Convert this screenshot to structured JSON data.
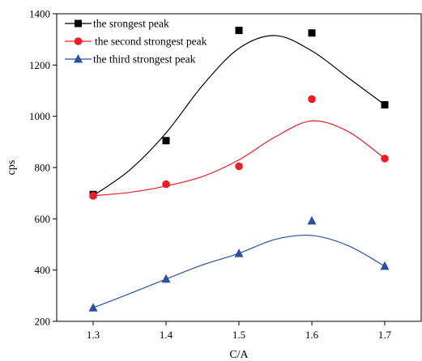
{
  "chart_data": {
    "type": "scatter",
    "title": "",
    "xlabel": "C/A",
    "ylabel": "cps",
    "xlim": [
      1.25,
      1.75
    ],
    "ylim": [
      200,
      1400
    ],
    "xticks": [
      1.3,
      1.4,
      1.5,
      1.6,
      1.7
    ],
    "yticks": [
      200,
      400,
      600,
      800,
      1000,
      1200,
      1400
    ],
    "grid": false,
    "legend": "top-left",
    "series": [
      {
        "name": "the srongest peak",
        "marker": "square",
        "color": "#000000",
        "x": [
          1.3,
          1.4,
          1.5,
          1.6,
          1.7
        ],
        "y": [
          695,
          905,
          1335,
          1325,
          1045
        ],
        "fit": [
          [
            1.3,
            690
          ],
          [
            1.35,
            790
          ],
          [
            1.4,
            935
          ],
          [
            1.45,
            1120
          ],
          [
            1.5,
            1265
          ],
          [
            1.55,
            1315
          ],
          [
            1.6,
            1255
          ],
          [
            1.65,
            1150
          ],
          [
            1.7,
            1045
          ]
        ]
      },
      {
        "name": "the second strongest peak",
        "marker": "circle",
        "color": "#ee1c25",
        "x": [
          1.3,
          1.4,
          1.5,
          1.6,
          1.7
        ],
        "y": [
          690,
          735,
          805,
          1067,
          835
        ],
        "fit": [
          [
            1.3,
            690
          ],
          [
            1.35,
            703
          ],
          [
            1.4,
            728
          ],
          [
            1.45,
            765
          ],
          [
            1.5,
            830
          ],
          [
            1.55,
            920
          ],
          [
            1.6,
            982
          ],
          [
            1.65,
            940
          ],
          [
            1.7,
            835
          ]
        ]
      },
      {
        "name": "the third strongest peak",
        "marker": "triangle",
        "color": "#2b4fa2",
        "x": [
          1.3,
          1.4,
          1.5,
          1.6,
          1.7
        ],
        "y": [
          253,
          365,
          465,
          592,
          415
        ],
        "fit": [
          [
            1.3,
            253
          ],
          [
            1.35,
            308
          ],
          [
            1.4,
            365
          ],
          [
            1.45,
            420
          ],
          [
            1.5,
            465
          ],
          [
            1.55,
            520
          ],
          [
            1.6,
            535
          ],
          [
            1.65,
            495
          ],
          [
            1.7,
            415
          ]
        ]
      }
    ]
  }
}
